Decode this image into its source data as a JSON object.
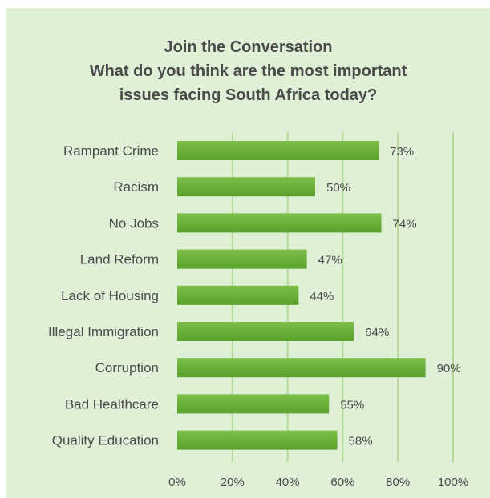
{
  "chart_data": {
    "type": "bar",
    "orientation": "horizontal",
    "title_lines": [
      "Join the Conversation",
      "What do you think are the most important",
      "issues facing South Africa today?"
    ],
    "categories": [
      "Rampant Crime",
      "Racism",
      "No Jobs",
      "Land Reform",
      "Lack of Housing",
      "Illegal Immigration",
      "Corruption",
      "Bad Healthcare",
      "Quality Education"
    ],
    "values": [
      73,
      50,
      74,
      47,
      44,
      64,
      90,
      55,
      58
    ],
    "value_labels": [
      "73%",
      "50%",
      "74%",
      "47%",
      "44%",
      "64%",
      "90%",
      "55%",
      "58%"
    ],
    "xlim": [
      0,
      100
    ],
    "x_ticks": [
      0,
      20,
      40,
      60,
      80,
      100
    ],
    "x_tick_labels": [
      "0%",
      "20%",
      "40%",
      "60%",
      "80%",
      "100%"
    ],
    "grid": "vertical",
    "legend": "none",
    "colors": {
      "background": "#dff0d6",
      "bar": "#5aa02c",
      "bar_highlight": "#7cc04a",
      "grid": "#b3d898",
      "text": "#4a4a4a"
    }
  }
}
